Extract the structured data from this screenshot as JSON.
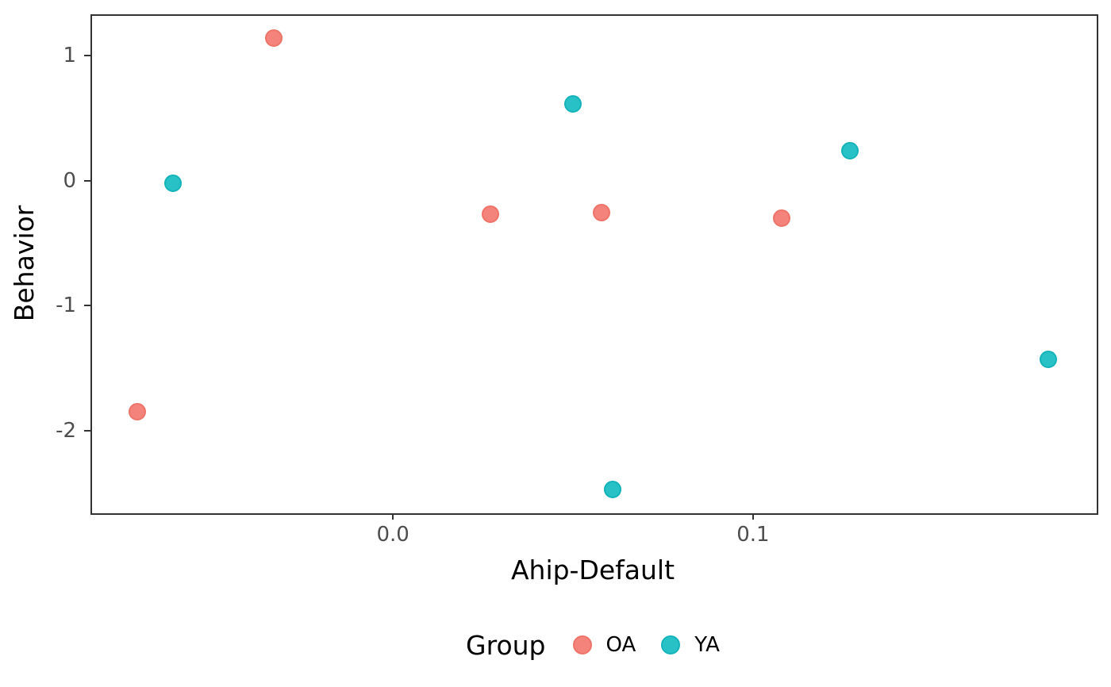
{
  "chart_data": {
    "type": "scatter",
    "title": "",
    "xlabel": "Ahip-Default",
    "ylabel": "Behavior",
    "xlim": [
      -0.084,
      0.195
    ],
    "ylim": [
      -2.65,
      1.33
    ],
    "grid": "off",
    "panel_border_color": "#333333",
    "tick_label_color": "#4d4d4d",
    "axis_title_color": "#000000",
    "xticks": [
      {
        "value": 0.0,
        "label": "0.0"
      },
      {
        "value": 0.1,
        "label": "0.1"
      }
    ],
    "yticks": [
      {
        "value": 1,
        "label": "1"
      },
      {
        "value": 0,
        "label": "0"
      },
      {
        "value": -1,
        "label": "-1"
      },
      {
        "value": -2,
        "label": "-2"
      }
    ],
    "legend": {
      "title": "Group",
      "position": "bottom"
    },
    "series": [
      {
        "name": "OA",
        "color": "#F4837B",
        "stroke": "#EE7368",
        "points": [
          [
            -0.033,
            1.14
          ],
          [
            -0.071,
            -1.85
          ],
          [
            0.027,
            -0.27
          ],
          [
            0.058,
            -0.26
          ],
          [
            0.108,
            -0.3
          ]
        ]
      },
      {
        "name": "YA",
        "color": "#28C2C6",
        "stroke": "#14B3B9",
        "points": [
          [
            -0.061,
            -0.02
          ],
          [
            0.05,
            0.61
          ],
          [
            0.061,
            -2.47
          ],
          [
            0.127,
            0.24
          ],
          [
            0.182,
            -1.43
          ]
        ]
      }
    ]
  }
}
